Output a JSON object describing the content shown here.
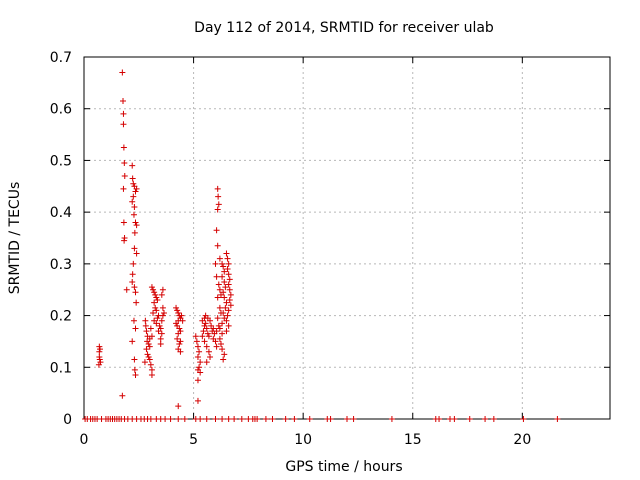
{
  "chart_data": {
    "type": "scatter",
    "title": "Day 112 of 2014, SRMTID for receiver ulab",
    "xlabel": "GPS time / hours",
    "ylabel": "SRMTID / TECUs",
    "xlim": [
      0,
      24
    ],
    "ylim": [
      0,
      0.7
    ],
    "xticks": [
      0,
      5,
      10,
      15,
      20
    ],
    "yticks": [
      0,
      0.1,
      0.2,
      0.3,
      0.4,
      0.5,
      0.6,
      0.7
    ],
    "xtick_labels": [
      "0",
      "5",
      "10",
      "15",
      "20"
    ],
    "ytick_labels": [
      "0",
      "0.1",
      "0.2",
      "0.3",
      "0.4",
      "0.5",
      "0.6",
      "0.7"
    ],
    "grid": true,
    "marker": "+",
    "color": "#d40000",
    "series": [
      {
        "name": "SRMTID",
        "points": [
          [
            0.05,
            0
          ],
          [
            0.15,
            0
          ],
          [
            0.3,
            0
          ],
          [
            0.4,
            0
          ],
          [
            0.5,
            0
          ],
          [
            0.6,
            0
          ],
          [
            0.8,
            0
          ],
          [
            1.0,
            0
          ],
          [
            1.1,
            0
          ],
          [
            1.2,
            0
          ],
          [
            1.3,
            0
          ],
          [
            1.4,
            0
          ],
          [
            1.5,
            0
          ],
          [
            1.6,
            0
          ],
          [
            1.7,
            0
          ],
          [
            1.85,
            0
          ],
          [
            2.0,
            0
          ],
          [
            2.2,
            0
          ],
          [
            2.4,
            0
          ],
          [
            2.6,
            0
          ],
          [
            2.75,
            0
          ],
          [
            2.9,
            0
          ],
          [
            3.05,
            0
          ],
          [
            3.3,
            0
          ],
          [
            3.5,
            0
          ],
          [
            3.7,
            0
          ],
          [
            3.95,
            0
          ],
          [
            4.3,
            0
          ],
          [
            4.6,
            0
          ],
          [
            5.1,
            0
          ],
          [
            5.3,
            0
          ],
          [
            5.6,
            0
          ],
          [
            6.0,
            0
          ],
          [
            6.3,
            0
          ],
          [
            6.6,
            0
          ],
          [
            6.85,
            0
          ],
          [
            7.2,
            0
          ],
          [
            7.5,
            0
          ],
          [
            7.7,
            0
          ],
          [
            7.8,
            0
          ],
          [
            7.9,
            0
          ],
          [
            8.3,
            0
          ],
          [
            8.6,
            0
          ],
          [
            9.2,
            0
          ],
          [
            9.6,
            0
          ],
          [
            10.3,
            0
          ],
          [
            11.1,
            0
          ],
          [
            11.25,
            0
          ],
          [
            12.0,
            0
          ],
          [
            12.3,
            0
          ],
          [
            14.05,
            0
          ],
          [
            16.05,
            0
          ],
          [
            16.2,
            0
          ],
          [
            16.7,
            0
          ],
          [
            16.9,
            0
          ],
          [
            17.6,
            0
          ],
          [
            18.3,
            0
          ],
          [
            18.7,
            0
          ],
          [
            20.05,
            0
          ],
          [
            21.6,
            0
          ],
          [
            0.7,
            0.14
          ],
          [
            0.7,
            0.13
          ],
          [
            0.7,
            0.12
          ],
          [
            0.72,
            0.115
          ],
          [
            0.75,
            0.11
          ],
          [
            0.68,
            0.105
          ],
          [
            0.73,
            0.135
          ],
          [
            1.75,
            0.67
          ],
          [
            1.78,
            0.615
          ],
          [
            1.8,
            0.59
          ],
          [
            1.8,
            0.57
          ],
          [
            1.82,
            0.525
          ],
          [
            1.84,
            0.495
          ],
          [
            1.86,
            0.47
          ],
          [
            1.8,
            0.445
          ],
          [
            1.82,
            0.38
          ],
          [
            1.85,
            0.35
          ],
          [
            1.83,
            0.345
          ],
          [
            1.95,
            0.25
          ],
          [
            1.75,
            0.045
          ],
          [
            2.2,
            0.49
          ],
          [
            2.22,
            0.465
          ],
          [
            2.25,
            0.455
          ],
          [
            2.3,
            0.45
          ],
          [
            2.35,
            0.44
          ],
          [
            2.4,
            0.445
          ],
          [
            2.25,
            0.43
          ],
          [
            2.2,
            0.42
          ],
          [
            2.3,
            0.41
          ],
          [
            2.28,
            0.395
          ],
          [
            2.35,
            0.38
          ],
          [
            2.4,
            0.375
          ],
          [
            2.32,
            0.36
          ],
          [
            2.3,
            0.33
          ],
          [
            2.4,
            0.32
          ],
          [
            2.25,
            0.3
          ],
          [
            2.22,
            0.28
          ],
          [
            2.2,
            0.265
          ],
          [
            2.3,
            0.255
          ],
          [
            2.35,
            0.245
          ],
          [
            2.38,
            0.225
          ],
          [
            2.2,
            0.15
          ],
          [
            2.35,
            0.175
          ],
          [
            2.28,
            0.19
          ],
          [
            2.3,
            0.115
          ],
          [
            2.32,
            0.095
          ],
          [
            2.35,
            0.085
          ],
          [
            2.8,
            0.19
          ],
          [
            2.82,
            0.18
          ],
          [
            2.85,
            0.17
          ],
          [
            2.9,
            0.16
          ],
          [
            2.88,
            0.15
          ],
          [
            2.95,
            0.145
          ],
          [
            3.0,
            0.14
          ],
          [
            2.85,
            0.135
          ],
          [
            2.9,
            0.125
          ],
          [
            2.95,
            0.12
          ],
          [
            3.0,
            0.115
          ],
          [
            3.05,
            0.105
          ],
          [
            2.78,
            0.11
          ],
          [
            3.1,
            0.095
          ],
          [
            3.1,
            0.085
          ],
          [
            3.1,
            0.255
          ],
          [
            3.15,
            0.25
          ],
          [
            3.2,
            0.245
          ],
          [
            3.25,
            0.24
          ],
          [
            3.3,
            0.235
          ],
          [
            3.35,
            0.23
          ],
          [
            3.2,
            0.225
          ],
          [
            3.25,
            0.215
          ],
          [
            3.3,
            0.21
          ],
          [
            3.15,
            0.205
          ],
          [
            3.4,
            0.2
          ],
          [
            3.35,
            0.195
          ],
          [
            3.2,
            0.19
          ],
          [
            3.3,
            0.185
          ],
          [
            3.45,
            0.18
          ],
          [
            3.5,
            0.175
          ],
          [
            3.4,
            0.17
          ],
          [
            3.55,
            0.165
          ],
          [
            3.5,
            0.155
          ],
          [
            3.6,
            0.25
          ],
          [
            3.55,
            0.24
          ],
          [
            3.6,
            0.215
          ],
          [
            3.65,
            0.205
          ],
          [
            3.6,
            0.2
          ],
          [
            3.55,
            0.19
          ],
          [
            3.5,
            0.145
          ],
          [
            3.05,
            0.175
          ],
          [
            3.1,
            0.16
          ],
          [
            3.0,
            0.155
          ],
          [
            4.2,
            0.215
          ],
          [
            4.25,
            0.21
          ],
          [
            4.3,
            0.205
          ],
          [
            4.35,
            0.2
          ],
          [
            4.4,
            0.195
          ],
          [
            4.3,
            0.19
          ],
          [
            4.2,
            0.185
          ],
          [
            4.25,
            0.18
          ],
          [
            4.35,
            0.175
          ],
          [
            4.4,
            0.17
          ],
          [
            4.3,
            0.165
          ],
          [
            4.25,
            0.155
          ],
          [
            4.4,
            0.15
          ],
          [
            4.35,
            0.145
          ],
          [
            4.3,
            0.135
          ],
          [
            4.4,
            0.13
          ],
          [
            4.45,
            0.2
          ],
          [
            4.5,
            0.19
          ],
          [
            4.3,
            0.025
          ],
          [
            5.1,
            0.16
          ],
          [
            5.15,
            0.15
          ],
          [
            5.2,
            0.14
          ],
          [
            5.25,
            0.13
          ],
          [
            5.2,
            0.12
          ],
          [
            5.3,
            0.11
          ],
          [
            5.25,
            0.1
          ],
          [
            5.2,
            0.095
          ],
          [
            5.3,
            0.09
          ],
          [
            5.2,
            0.075
          ],
          [
            5.4,
            0.16
          ],
          [
            5.45,
            0.17
          ],
          [
            5.5,
            0.18
          ],
          [
            5.4,
            0.19
          ],
          [
            5.5,
            0.195
          ],
          [
            5.55,
            0.185
          ],
          [
            5.6,
            0.175
          ],
          [
            5.65,
            0.165
          ],
          [
            5.7,
            0.16
          ],
          [
            5.5,
            0.15
          ],
          [
            5.6,
            0.14
          ],
          [
            5.7,
            0.13
          ],
          [
            5.75,
            0.12
          ],
          [
            5.6,
            0.11
          ],
          [
            5.55,
            0.2
          ],
          [
            5.65,
            0.195
          ],
          [
            5.75,
            0.19
          ],
          [
            5.8,
            0.18
          ],
          [
            5.85,
            0.17
          ],
          [
            5.9,
            0.175
          ],
          [
            5.95,
            0.165
          ],
          [
            5.9,
            0.155
          ],
          [
            6.0,
            0.15
          ],
          [
            6.05,
            0.14
          ],
          [
            5.2,
            0.035
          ],
          [
            6.1,
            0.445
          ],
          [
            6.12,
            0.43
          ],
          [
            6.15,
            0.415
          ],
          [
            6.1,
            0.405
          ],
          [
            6.05,
            0.365
          ],
          [
            6.1,
            0.335
          ],
          [
            6.2,
            0.31
          ],
          [
            6.0,
            0.3
          ],
          [
            6.05,
            0.275
          ],
          [
            6.15,
            0.26
          ],
          [
            6.2,
            0.25
          ],
          [
            6.25,
            0.24
          ],
          [
            6.1,
            0.235
          ],
          [
            6.3,
            0.3
          ],
          [
            6.35,
            0.295
          ],
          [
            6.4,
            0.285
          ],
          [
            6.3,
            0.275
          ],
          [
            6.4,
            0.265
          ],
          [
            6.45,
            0.255
          ],
          [
            6.35,
            0.245
          ],
          [
            6.4,
            0.235
          ],
          [
            6.5,
            0.225
          ],
          [
            6.45,
            0.215
          ],
          [
            6.35,
            0.205
          ],
          [
            6.4,
            0.195
          ],
          [
            6.3,
            0.185
          ],
          [
            6.2,
            0.175
          ],
          [
            6.3,
            0.165
          ],
          [
            6.2,
            0.155
          ],
          [
            6.25,
            0.145
          ],
          [
            6.3,
            0.135
          ],
          [
            6.4,
            0.125
          ],
          [
            6.35,
            0.115
          ],
          [
            6.5,
            0.32
          ],
          [
            6.55,
            0.31
          ],
          [
            6.6,
            0.3
          ],
          [
            6.55,
            0.29
          ],
          [
            6.6,
            0.28
          ],
          [
            6.65,
            0.27
          ],
          [
            6.6,
            0.26
          ],
          [
            6.65,
            0.25
          ],
          [
            6.7,
            0.24
          ],
          [
            6.65,
            0.23
          ],
          [
            6.7,
            0.22
          ],
          [
            6.6,
            0.21
          ],
          [
            6.55,
            0.2
          ],
          [
            6.5,
            0.19
          ],
          [
            6.6,
            0.18
          ],
          [
            6.5,
            0.17
          ],
          [
            6.2,
            0.215
          ],
          [
            6.25,
            0.205
          ],
          [
            6.1,
            0.195
          ],
          [
            6.15,
            0.18
          ],
          [
            6.05,
            0.17
          ]
        ]
      }
    ]
  }
}
